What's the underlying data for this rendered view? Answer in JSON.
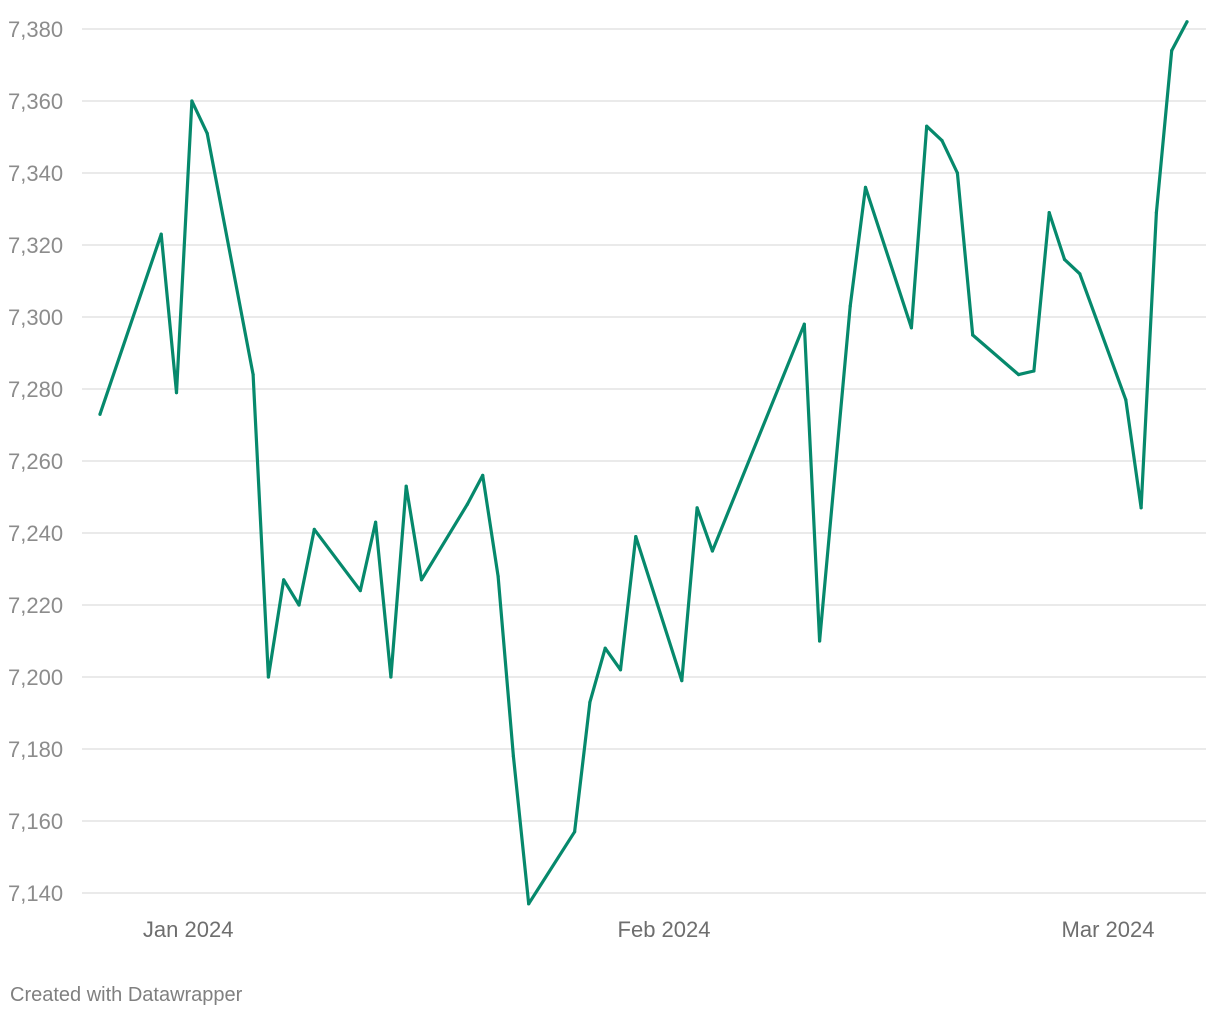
{
  "chart_data": {
    "type": "line",
    "series": [
      {
        "color": "#06896c",
        "points": [
          [
            "2023-12-29",
            7273
          ],
          [
            "2024-01-02",
            7323
          ],
          [
            "2024-01-03",
            7279
          ],
          [
            "2024-01-04",
            7360
          ],
          [
            "2024-01-05",
            7351
          ],
          [
            "2024-01-08",
            7284
          ],
          [
            "2024-01-09",
            7200
          ],
          [
            "2024-01-10",
            7227
          ],
          [
            "2024-01-11",
            7220
          ],
          [
            "2024-01-12",
            7241
          ],
          [
            "2024-01-15",
            7224
          ],
          [
            "2024-01-16",
            7243
          ],
          [
            "2024-01-17",
            7200
          ],
          [
            "2024-01-18",
            7253
          ],
          [
            "2024-01-19",
            7227
          ],
          [
            "2024-01-22",
            7248
          ],
          [
            "2024-01-23",
            7256
          ],
          [
            "2024-01-24",
            7228
          ],
          [
            "2024-01-25",
            7178
          ],
          [
            "2024-01-26",
            7137
          ],
          [
            "2024-01-29",
            7157
          ],
          [
            "2024-01-30",
            7193
          ],
          [
            "2024-01-31",
            7208
          ],
          [
            "2024-02-01",
            7202
          ],
          [
            "2024-02-02",
            7239
          ],
          [
            "2024-02-05",
            7199
          ],
          [
            "2024-02-06",
            7247
          ],
          [
            "2024-02-07",
            7235
          ],
          [
            "2024-02-13",
            7298
          ],
          [
            "2024-02-14",
            7210
          ],
          [
            "2024-02-16",
            7303
          ],
          [
            "2024-02-17",
            7336
          ],
          [
            "2024-02-20",
            7297
          ],
          [
            "2024-02-21",
            7353
          ],
          [
            "2024-02-22",
            7349
          ],
          [
            "2024-02-23",
            7340
          ],
          [
            "2024-02-24",
            7295
          ],
          [
            "2024-02-27",
            7284
          ],
          [
            "2024-02-28",
            7285
          ],
          [
            "2024-02-29",
            7329
          ],
          [
            "2024-03-01",
            7316
          ],
          [
            "2024-03-02",
            7312
          ],
          [
            "2024-03-05",
            7277
          ],
          [
            "2024-03-06",
            7247
          ],
          [
            "2024-03-07",
            7329
          ],
          [
            "2024-03-08",
            7374
          ],
          [
            "2024-03-09",
            7382
          ]
        ]
      }
    ],
    "yticks": [
      "7,380",
      "7,360",
      "7,340",
      "7,320",
      "7,300",
      "7,280",
      "7,260",
      "7,240",
      "7,220",
      "7,200",
      "7,180",
      "7,160",
      "7,140"
    ],
    "ylim": [
      7140,
      7380
    ],
    "xticks": [
      {
        "date": "2024-01-01",
        "label": "Jan 2024"
      },
      {
        "date": "2024-02-01",
        "label": "Feb 2024"
      },
      {
        "date": "2024-03-01",
        "label": "Mar 2024"
      }
    ],
    "xlim": [
      "2023-12-29",
      "2024-03-09"
    ],
    "grid": true
  },
  "footer": "Created with Datawrapper"
}
